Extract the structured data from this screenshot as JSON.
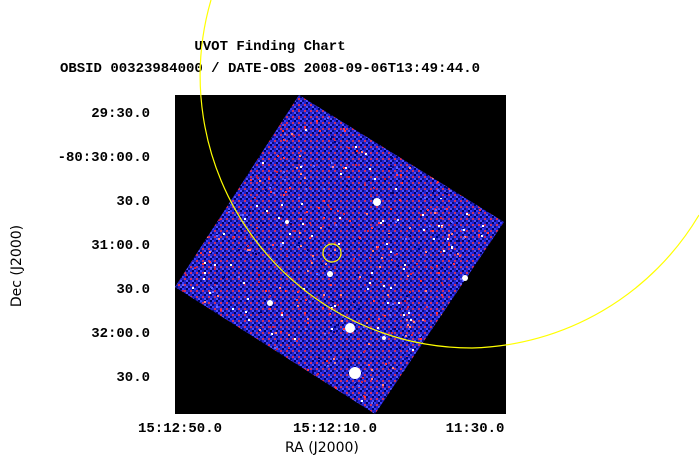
{
  "header": {
    "title": "UVOT Finding Chart",
    "subtitle": "OBSID 00323984000 / DATE-OBS 2008-09-06T13:49:44.0"
  },
  "axes": {
    "xlabel": "RA (J2000)",
    "ylabel": "Dec (J2000)",
    "dec_ticks": [
      "29:30.0",
      "-80:30:00.0",
      "30.0",
      "31:00.0",
      "30.0",
      "32:00.0",
      "30.0"
    ],
    "ra_ticks": [
      "15:12:50.0",
      "15:12:10.0",
      "11:30.0"
    ]
  },
  "colors": {
    "background": "#000000",
    "image_base": "#1a1acc",
    "overlay_circle": "#ffff00"
  }
}
